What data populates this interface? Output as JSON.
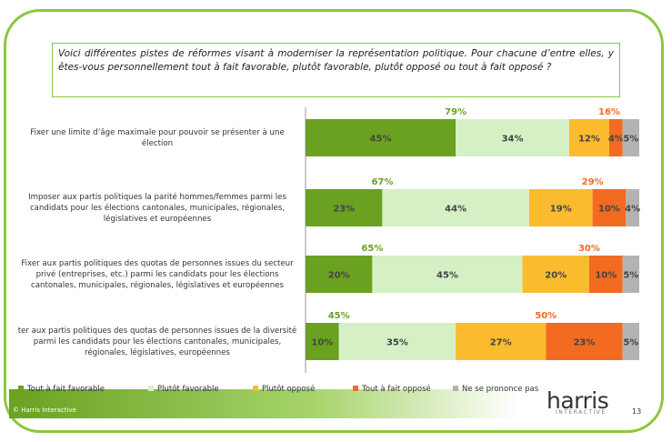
{
  "question": "Voici différentes pistes de réformes visant à moderniser la représentation politique. Pour chacune d’entre elles, y êtes-vous personnellement tout à fait favorable, plutôt favorable, plutôt opposé ou tout à fait opposé ?",
  "footer": {
    "copyright": "© Harris Interactive",
    "logo": "harris",
    "logo_sub": "INTERACTIVE",
    "page": "13"
  },
  "chart_data": {
    "type": "stacked_bar_horizontal",
    "categories": [
      "Fixer une limite d’âge maximale pour pouvoir se présenter à une élection",
      "Imposer aux partis politiques la parité hommes/femmes parmi les candidats pour les élections cantonales, municipales, régionales, législatives et européennes",
      "Fixer aux partis politiques des quotas de personnes issues du secteur privé (entreprises, etc.) parmi les candidats pour les élections cantonales, municipales, régionales, législatives et européennes",
      "ter aux partis politiques des quotas de personnes issues de la diversité parmi les candidats pour les élections cantonales, municipales, régionales, législatives, européennes"
    ],
    "xlim": [
      0,
      100
    ],
    "series": [
      {
        "name": "Tout à fait favorable",
        "color": "#6aa121",
        "values": [
          45,
          23,
          20,
          10
        ],
        "value_labels": [
          "45%",
          "23%",
          "20%",
          "10%"
        ]
      },
      {
        "name": "Plutôt favorable",
        "color": "#d6f0c6",
        "values": [
          34,
          44,
          45,
          35
        ],
        "value_labels": [
          "34%",
          "44%",
          "45%",
          "35%"
        ]
      },
      {
        "name": "Plutôt opposé",
        "color": "#fbbb2e",
        "values": [
          12,
          19,
          20,
          27
        ],
        "value_labels": [
          "12%",
          "19%",
          "20%",
          "27%"
        ]
      },
      {
        "name": "Tout à fait opposé",
        "color": "#f26b21",
        "values": [
          4,
          10,
          10,
          23
        ],
        "value_labels": [
          "4%",
          "10%",
          "10%",
          "23%"
        ]
      },
      {
        "name": "Ne se prononce pas",
        "color": "#b3b3b3",
        "values": [
          5,
          4,
          5,
          5
        ],
        "value_labels": [
          "5%",
          "4%",
          "5%",
          "5%"
        ]
      }
    ],
    "totals": [
      {
        "color": "#6aa121",
        "values": [
          79,
          67,
          65,
          45
        ],
        "value_labels": [
          "79%",
          "67%",
          "65%",
          "45%"
        ]
      },
      {
        "color": "#f26b21",
        "values": [
          16,
          29,
          30,
          50
        ],
        "value_labels": [
          "16%",
          "29%",
          "30%",
          "50%"
        ]
      }
    ]
  }
}
